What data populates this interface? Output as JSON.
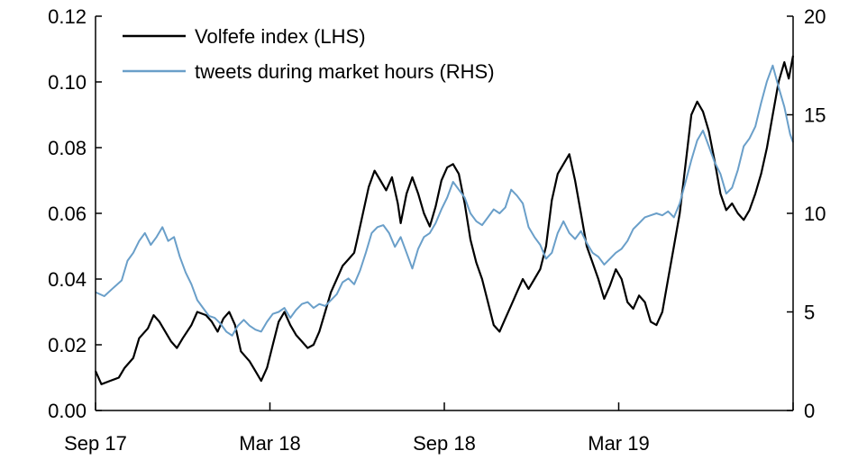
{
  "chart_data": {
    "type": "line",
    "title": "",
    "x_ticks": [
      {
        "label": "Sep 17",
        "t": 0
      },
      {
        "label": "Mar 18",
        "t": 6
      },
      {
        "label": "Sep 18",
        "t": 12
      },
      {
        "label": "Mar 19",
        "t": 18
      }
    ],
    "x_range_months": [
      0,
      24
    ],
    "y_left": {
      "label": "",
      "ylim": [
        0,
        0.12
      ],
      "ticks": [
        "0.00",
        "0.02",
        "0.04",
        "0.06",
        "0.08",
        "0.10",
        "0.12"
      ]
    },
    "y_right": {
      "label": "",
      "ylim": [
        0,
        20
      ],
      "ticks": [
        "0",
        "5",
        "10",
        "15",
        "20"
      ]
    },
    "legend_position": "top-left",
    "series": [
      {
        "name": "Volfefe index (LHS)",
        "axis": "left",
        "color": "#000000",
        "points": [
          [
            0.0,
            0.012
          ],
          [
            0.2,
            0.008
          ],
          [
            0.5,
            0.009
          ],
          [
            0.8,
            0.01
          ],
          [
            1.0,
            0.013
          ],
          [
            1.3,
            0.016
          ],
          [
            1.5,
            0.022
          ],
          [
            1.8,
            0.025
          ],
          [
            2.0,
            0.029
          ],
          [
            2.2,
            0.027
          ],
          [
            2.4,
            0.024
          ],
          [
            2.6,
            0.021
          ],
          [
            2.8,
            0.019
          ],
          [
            3.0,
            0.022
          ],
          [
            3.3,
            0.026
          ],
          [
            3.5,
            0.03
          ],
          [
            3.8,
            0.029
          ],
          [
            4.0,
            0.027
          ],
          [
            4.2,
            0.024
          ],
          [
            4.4,
            0.028
          ],
          [
            4.6,
            0.03
          ],
          [
            4.8,
            0.026
          ],
          [
            5.0,
            0.018
          ],
          [
            5.3,
            0.015
          ],
          [
            5.5,
            0.012
          ],
          [
            5.7,
            0.009
          ],
          [
            5.9,
            0.013
          ],
          [
            6.1,
            0.02
          ],
          [
            6.3,
            0.027
          ],
          [
            6.5,
            0.03
          ],
          [
            6.7,
            0.026
          ],
          [
            6.9,
            0.023
          ],
          [
            7.1,
            0.021
          ],
          [
            7.3,
            0.019
          ],
          [
            7.5,
            0.02
          ],
          [
            7.7,
            0.024
          ],
          [
            7.9,
            0.03
          ],
          [
            8.1,
            0.036
          ],
          [
            8.3,
            0.04
          ],
          [
            8.5,
            0.044
          ],
          [
            8.7,
            0.046
          ],
          [
            8.9,
            0.048
          ],
          [
            9.0,
            0.052
          ],
          [
            9.2,
            0.06
          ],
          [
            9.4,
            0.068
          ],
          [
            9.6,
            0.073
          ],
          [
            9.8,
            0.07
          ],
          [
            10.0,
            0.067
          ],
          [
            10.2,
            0.071
          ],
          [
            10.4,
            0.063
          ],
          [
            10.5,
            0.057
          ],
          [
            10.7,
            0.066
          ],
          [
            10.9,
            0.071
          ],
          [
            11.1,
            0.066
          ],
          [
            11.3,
            0.06
          ],
          [
            11.5,
            0.056
          ],
          [
            11.7,
            0.062
          ],
          [
            11.9,
            0.07
          ],
          [
            12.1,
            0.074
          ],
          [
            12.3,
            0.075
          ],
          [
            12.5,
            0.072
          ],
          [
            12.7,
            0.063
          ],
          [
            12.9,
            0.052
          ],
          [
            13.1,
            0.045
          ],
          [
            13.3,
            0.04
          ],
          [
            13.5,
            0.033
          ],
          [
            13.7,
            0.026
          ],
          [
            13.9,
            0.024
          ],
          [
            14.1,
            0.028
          ],
          [
            14.3,
            0.032
          ],
          [
            14.5,
            0.036
          ],
          [
            14.7,
            0.04
          ],
          [
            14.9,
            0.037
          ],
          [
            15.1,
            0.04
          ],
          [
            15.3,
            0.043
          ],
          [
            15.5,
            0.05
          ],
          [
            15.7,
            0.064
          ],
          [
            15.9,
            0.072
          ],
          [
            16.1,
            0.075
          ],
          [
            16.3,
            0.078
          ],
          [
            16.5,
            0.07
          ],
          [
            16.7,
            0.06
          ],
          [
            16.9,
            0.05
          ],
          [
            17.1,
            0.045
          ],
          [
            17.3,
            0.04
          ],
          [
            17.5,
            0.034
          ],
          [
            17.7,
            0.038
          ],
          [
            17.9,
            0.043
          ],
          [
            18.1,
            0.04
          ],
          [
            18.3,
            0.033
          ],
          [
            18.5,
            0.031
          ],
          [
            18.7,
            0.035
          ],
          [
            18.9,
            0.033
          ],
          [
            19.1,
            0.027
          ],
          [
            19.3,
            0.026
          ],
          [
            19.5,
            0.03
          ],
          [
            19.7,
            0.04
          ],
          [
            19.9,
            0.05
          ],
          [
            20.1,
            0.06
          ],
          [
            20.3,
            0.075
          ],
          [
            20.5,
            0.09
          ],
          [
            20.7,
            0.094
          ],
          [
            20.9,
            0.091
          ],
          [
            21.1,
            0.085
          ],
          [
            21.3,
            0.076
          ],
          [
            21.5,
            0.066
          ],
          [
            21.7,
            0.061
          ],
          [
            21.9,
            0.063
          ],
          [
            22.1,
            0.06
          ],
          [
            22.3,
            0.058
          ],
          [
            22.5,
            0.061
          ],
          [
            22.7,
            0.066
          ],
          [
            22.9,
            0.072
          ],
          [
            23.1,
            0.08
          ],
          [
            23.3,
            0.09
          ],
          [
            23.5,
            0.1
          ],
          [
            23.7,
            0.106
          ],
          [
            23.85,
            0.101
          ],
          [
            24.0,
            0.108
          ]
        ]
      },
      {
        "name": "tweets during market hours (RHS)",
        "axis": "right",
        "color": "#6a9fc9",
        "points": [
          [
            0.0,
            6.0
          ],
          [
            0.3,
            5.8
          ],
          [
            0.6,
            6.2
          ],
          [
            0.9,
            6.6
          ],
          [
            1.1,
            7.6
          ],
          [
            1.3,
            8.0
          ],
          [
            1.5,
            8.6
          ],
          [
            1.7,
            9.0
          ],
          [
            1.9,
            8.4
          ],
          [
            2.1,
            8.8
          ],
          [
            2.3,
            9.3
          ],
          [
            2.5,
            8.6
          ],
          [
            2.7,
            8.8
          ],
          [
            2.9,
            7.8
          ],
          [
            3.1,
            7.0
          ],
          [
            3.3,
            6.4
          ],
          [
            3.5,
            5.6
          ],
          [
            3.7,
            5.2
          ],
          [
            3.9,
            4.8
          ],
          [
            4.1,
            4.7
          ],
          [
            4.3,
            4.4
          ],
          [
            4.5,
            4.0
          ],
          [
            4.7,
            3.8
          ],
          [
            4.9,
            4.3
          ],
          [
            5.1,
            4.6
          ],
          [
            5.3,
            4.3
          ],
          [
            5.5,
            4.1
          ],
          [
            5.7,
            4.0
          ],
          [
            5.9,
            4.5
          ],
          [
            6.1,
            4.9
          ],
          [
            6.3,
            5.0
          ],
          [
            6.5,
            5.2
          ],
          [
            6.7,
            4.7
          ],
          [
            6.9,
            5.1
          ],
          [
            7.1,
            5.4
          ],
          [
            7.3,
            5.5
          ],
          [
            7.5,
            5.2
          ],
          [
            7.7,
            5.4
          ],
          [
            7.9,
            5.3
          ],
          [
            8.1,
            5.6
          ],
          [
            8.3,
            5.9
          ],
          [
            8.5,
            6.5
          ],
          [
            8.7,
            6.7
          ],
          [
            8.9,
            6.4
          ],
          [
            9.1,
            7.1
          ],
          [
            9.3,
            8.0
          ],
          [
            9.5,
            9.0
          ],
          [
            9.7,
            9.3
          ],
          [
            9.9,
            9.4
          ],
          [
            10.1,
            9.0
          ],
          [
            10.3,
            8.3
          ],
          [
            10.5,
            8.8
          ],
          [
            10.7,
            8.0
          ],
          [
            10.9,
            7.2
          ],
          [
            11.1,
            8.2
          ],
          [
            11.3,
            8.8
          ],
          [
            11.5,
            9.0
          ],
          [
            11.7,
            9.5
          ],
          [
            11.9,
            10.2
          ],
          [
            12.1,
            10.8
          ],
          [
            12.3,
            11.6
          ],
          [
            12.5,
            11.2
          ],
          [
            12.7,
            10.8
          ],
          [
            12.9,
            10.0
          ],
          [
            13.1,
            9.6
          ],
          [
            13.3,
            9.4
          ],
          [
            13.5,
            9.8
          ],
          [
            13.7,
            10.2
          ],
          [
            13.9,
            10.0
          ],
          [
            14.1,
            10.3
          ],
          [
            14.3,
            11.2
          ],
          [
            14.5,
            10.9
          ],
          [
            14.7,
            10.5
          ],
          [
            14.9,
            9.3
          ],
          [
            15.1,
            8.8
          ],
          [
            15.3,
            8.4
          ],
          [
            15.5,
            7.7
          ],
          [
            15.7,
            8.0
          ],
          [
            15.9,
            9.0
          ],
          [
            16.1,
            9.6
          ],
          [
            16.3,
            9.0
          ],
          [
            16.5,
            8.7
          ],
          [
            16.7,
            9.1
          ],
          [
            16.9,
            8.5
          ],
          [
            17.1,
            8.0
          ],
          [
            17.3,
            7.8
          ],
          [
            17.5,
            7.4
          ],
          [
            17.7,
            7.7
          ],
          [
            17.9,
            8.0
          ],
          [
            18.1,
            8.2
          ],
          [
            18.3,
            8.6
          ],
          [
            18.5,
            9.2
          ],
          [
            18.7,
            9.5
          ],
          [
            18.9,
            9.8
          ],
          [
            19.1,
            9.9
          ],
          [
            19.3,
            10.0
          ],
          [
            19.5,
            9.9
          ],
          [
            19.7,
            10.1
          ],
          [
            19.9,
            9.8
          ],
          [
            20.1,
            10.5
          ],
          [
            20.3,
            11.6
          ],
          [
            20.5,
            12.7
          ],
          [
            20.7,
            13.7
          ],
          [
            20.9,
            14.2
          ],
          [
            21.1,
            13.4
          ],
          [
            21.3,
            12.6
          ],
          [
            21.5,
            12.0
          ],
          [
            21.7,
            11.0
          ],
          [
            21.9,
            11.3
          ],
          [
            22.1,
            12.2
          ],
          [
            22.3,
            13.4
          ],
          [
            22.5,
            13.8
          ],
          [
            22.7,
            14.4
          ],
          [
            22.9,
            15.6
          ],
          [
            23.1,
            16.7
          ],
          [
            23.3,
            17.5
          ],
          [
            23.5,
            16.4
          ],
          [
            23.7,
            15.4
          ],
          [
            23.9,
            14.0
          ],
          [
            24.0,
            13.6
          ]
        ]
      }
    ]
  }
}
